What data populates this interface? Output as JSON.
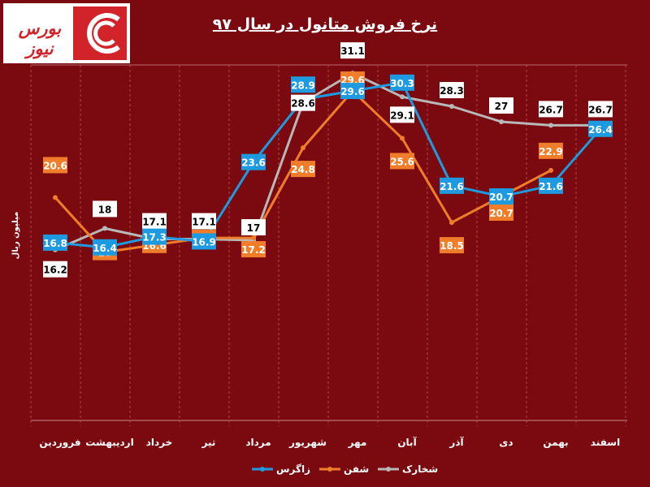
{
  "logo": {
    "text": "بورس نیوز"
  },
  "chart_data": {
    "type": "line",
    "title": "نرخ فروش متانول در سال ۹۷",
    "ylabel": "میلیون ریال",
    "xlabel": "",
    "categories": [
      "فروردین",
      "اردیبهشت",
      "خرداد",
      "تیر",
      "مرداد",
      "شهریور",
      "مهر",
      "آبان",
      "آذر",
      "دی",
      "بهمن",
      "اسفند"
    ],
    "series": [
      {
        "name": "زاگرس",
        "color": "#1e9be0",
        "values": [
          16.8,
          16.4,
          17.3,
          16.9,
          23.6,
          28.9,
          29.6,
          30.3,
          21.6,
          20.7,
          21.6,
          26.4
        ]
      },
      {
        "name": "شفن",
        "color": "#f07d2a",
        "values": [
          20.6,
          16,
          16.6,
          17.2,
          17.2,
          24.8,
          29.6,
          25.6,
          18.5,
          20.7,
          22.9,
          null
        ]
      },
      {
        "name": "شخارک",
        "color": "#b8b8b8",
        "values": [
          16.2,
          18,
          17.1,
          17.1,
          17,
          28.6,
          31.1,
          29.1,
          28.3,
          27,
          26.7,
          26.7
        ]
      }
    ],
    "legend_position": "bottom",
    "grid": false
  }
}
